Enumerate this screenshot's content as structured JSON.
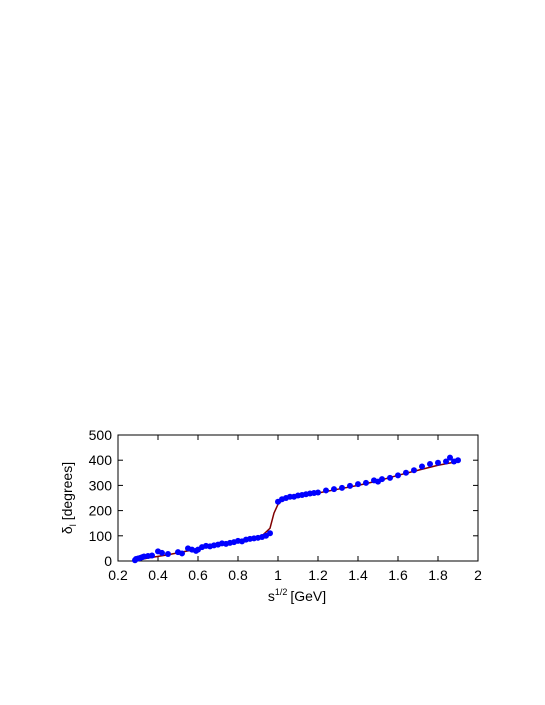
{
  "chart_data": {
    "type": "scatter",
    "x_label": {
      "symbol": "s",
      "superscript": "1/2",
      "text": "[GeV]"
    },
    "y_label": {
      "symbol": "δ",
      "subscript": "l",
      "text": "[degrees]"
    },
    "xlim": [
      0.2,
      2
    ],
    "xticks": [
      0.2,
      0.4,
      0.6,
      0.8,
      1,
      1.2,
      1.4,
      1.6,
      1.8,
      2
    ],
    "ylim": [
      0,
      500
    ],
    "yticks": [
      0,
      100,
      200,
      300,
      400,
      500
    ],
    "series": [
      {
        "type": "line",
        "color": "#800000",
        "x": [
          0.28,
          0.35,
          0.45,
          0.55,
          0.65,
          0.75,
          0.85,
          0.92,
          0.96,
          0.98,
          1.0,
          1.02,
          1.05,
          1.1,
          1.2,
          1.3,
          1.4,
          1.5,
          1.6,
          1.7,
          1.8,
          1.9
        ],
        "values": [
          0,
          12,
          25,
          40,
          55,
          70,
          85,
          100,
          130,
          190,
          225,
          240,
          250,
          258,
          270,
          285,
          300,
          318,
          340,
          360,
          380,
          395
        ]
      },
      {
        "type": "scatter",
        "color": "#0000ff",
        "x": [
          0.285,
          0.29,
          0.3,
          0.31,
          0.32,
          0.33,
          0.35,
          0.37,
          0.4,
          0.42,
          0.45,
          0.5,
          0.52,
          0.55,
          0.57,
          0.59,
          0.6,
          0.62,
          0.64,
          0.66,
          0.68,
          0.7,
          0.72,
          0.74,
          0.76,
          0.78,
          0.8,
          0.82,
          0.84,
          0.86,
          0.88,
          0.9,
          0.92,
          0.94,
          0.96,
          1.0,
          1.02,
          1.04,
          1.06,
          1.08,
          1.1,
          1.12,
          1.14,
          1.16,
          1.18,
          1.2,
          1.24,
          1.28,
          1.32,
          1.36,
          1.4,
          1.44,
          1.48,
          1.5,
          1.52,
          1.56,
          1.6,
          1.64,
          1.68,
          1.72,
          1.76,
          1.8,
          1.84,
          1.86,
          1.88,
          1.9
        ],
        "values": [
          3,
          8,
          10,
          12,
          15,
          18,
          20,
          22,
          38,
          32,
          28,
          35,
          30,
          50,
          45,
          40,
          45,
          55,
          60,
          58,
          62,
          65,
          70,
          68,
          72,
          75,
          80,
          78,
          85,
          88,
          90,
          92,
          95,
          100,
          110,
          235,
          245,
          250,
          255,
          255,
          260,
          262,
          265,
          268,
          270,
          272,
          280,
          285,
          290,
          298,
          305,
          310,
          320,
          315,
          325,
          330,
          340,
          350,
          360,
          375,
          385,
          390,
          395,
          410,
          395,
          400
        ]
      }
    ]
  }
}
